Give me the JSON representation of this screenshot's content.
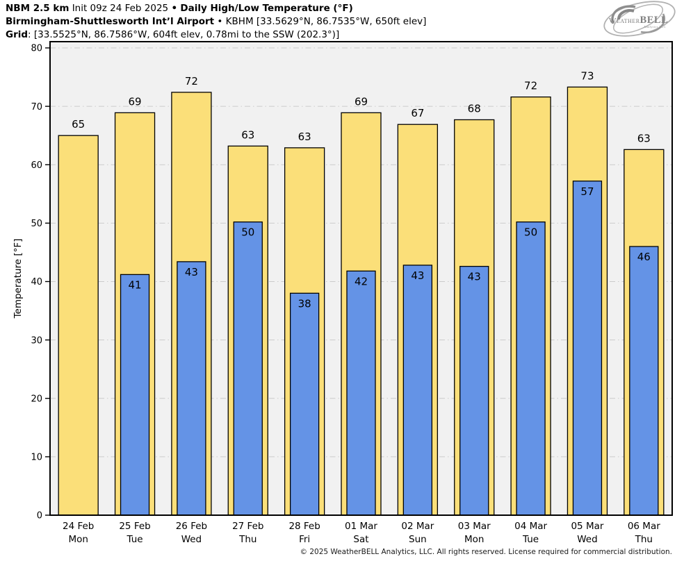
{
  "header": {
    "line1": {
      "model": "NBM 2.5 km",
      "init": "Init 09z 24 Feb 2025",
      "sep": "•",
      "product": "Daily High/Low Temperature (°F)"
    },
    "line2": {
      "station": "Birmingham-Shuttlesworth Intʼl Airport",
      "sep": "•",
      "details": "KBHM [33.5629°N, 86.7535°W, 650ft elev]"
    },
    "line3": {
      "label": "Grid",
      "details": ": [33.5525°N, 86.7586°W, 604ft elev, 0.78mi to the SSW (202.3°)]"
    }
  },
  "logo": {
    "weather": "Weather",
    "bell": "BELL",
    "sub": "Analytics LLC"
  },
  "footer": {
    "copyright": "© 2025 WeatherBELL Analytics, LLC. All rights reserved. License required for commercial distribution."
  },
  "chart_data": {
    "type": "bar",
    "title": "Daily High/Low Temperature (°F)",
    "ylabel": "Temperature [°F]",
    "ylim": [
      0,
      81.1
    ],
    "yticks": [
      0,
      10,
      20,
      30,
      40,
      50,
      60,
      70,
      80
    ],
    "grid": "horizontal dash-dot",
    "legend": "none",
    "background": "#f1f1f1",
    "gridline_color": "#cbcbcb",
    "categories": [
      {
        "date": "24 Feb",
        "day": "Mon"
      },
      {
        "date": "25 Feb",
        "day": "Tue"
      },
      {
        "date": "26 Feb",
        "day": "Wed"
      },
      {
        "date": "27 Feb",
        "day": "Thu"
      },
      {
        "date": "28 Feb",
        "day": "Fri"
      },
      {
        "date": "01 Mar",
        "day": "Sat"
      },
      {
        "date": "02 Mar",
        "day": "Sun"
      },
      {
        "date": "03 Mar",
        "day": "Mon"
      },
      {
        "date": "04 Mar",
        "day": "Tue"
      },
      {
        "date": "05 Mar",
        "day": "Wed"
      },
      {
        "date": "06 Mar",
        "day": "Thu"
      }
    ],
    "series": [
      {
        "name": "High",
        "color": "#fbdf79",
        "values": [
          65.0,
          68.9,
          72.4,
          63.2,
          62.9,
          68.9,
          66.9,
          67.7,
          71.6,
          73.3,
          62.6
        ],
        "labels": [
          65,
          69,
          72,
          63,
          63,
          69,
          67,
          68,
          72,
          73,
          63
        ]
      },
      {
        "name": "Low",
        "color": "#6493e6",
        "values": [
          null,
          41.2,
          43.4,
          50.2,
          38.0,
          41.8,
          42.8,
          42.6,
          50.2,
          57.2,
          46.0
        ],
        "labels": [
          null,
          41,
          43,
          50,
          38,
          42,
          43,
          43,
          50,
          57,
          46
        ]
      }
    ]
  }
}
